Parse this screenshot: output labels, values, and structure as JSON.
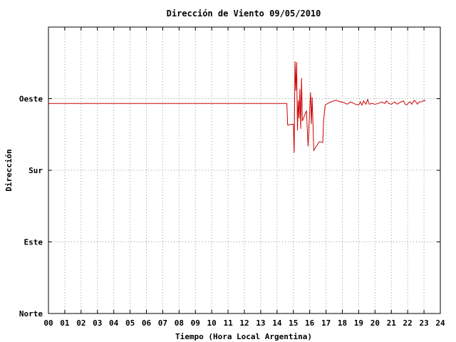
{
  "chart_data": {
    "type": "line",
    "title": "Dirección de Viento 09/05/2010",
    "xlabel": "Tiempo (Hora Local Argentina)",
    "ylabel": "Dirección",
    "xlim": [
      0,
      24
    ],
    "ylim": [
      0,
      360
    ],
    "x_tick_labels": [
      "00",
      "01",
      "02",
      "03",
      "04",
      "05",
      "06",
      "07",
      "08",
      "09",
      "10",
      "11",
      "12",
      "13",
      "14",
      "15",
      "16",
      "17",
      "18",
      "19",
      "20",
      "21",
      "22",
      "23",
      "24"
    ],
    "y_ticks": [
      {
        "value": 0,
        "label": "Norte"
      },
      {
        "value": 90,
        "label": "Este"
      },
      {
        "value": 180,
        "label": "Sur"
      },
      {
        "value": 270,
        "label": "Oeste"
      }
    ],
    "grid": true,
    "series": [
      {
        "color": "#cc0000",
        "points": [
          [
            0.0,
            264
          ],
          [
            14.6,
            264
          ],
          [
            14.65,
            237
          ],
          [
            15.0,
            238
          ],
          [
            15.05,
            202
          ],
          [
            15.1,
            317
          ],
          [
            15.15,
            280
          ],
          [
            15.2,
            316
          ],
          [
            15.25,
            230
          ],
          [
            15.3,
            268
          ],
          [
            15.35,
            245
          ],
          [
            15.4,
            282
          ],
          [
            15.45,
            232
          ],
          [
            15.5,
            296
          ],
          [
            15.55,
            242
          ],
          [
            15.8,
            255
          ],
          [
            15.9,
            210
          ],
          [
            16.0,
            257
          ],
          [
            16.05,
            278
          ],
          [
            16.1,
            238
          ],
          [
            16.15,
            272
          ],
          [
            16.25,
            205
          ],
          [
            16.4,
            210
          ],
          [
            16.6,
            216
          ],
          [
            16.8,
            215
          ],
          [
            16.85,
            242
          ],
          [
            16.95,
            262
          ],
          [
            17.1,
            264
          ],
          [
            17.3,
            266
          ],
          [
            17.6,
            268
          ],
          [
            17.9,
            266
          ],
          [
            18.1,
            265
          ],
          [
            18.3,
            263
          ],
          [
            18.5,
            266
          ],
          [
            18.8,
            263
          ],
          [
            19.0,
            262
          ],
          [
            19.1,
            266
          ],
          [
            19.2,
            262
          ],
          [
            19.3,
            267
          ],
          [
            19.45,
            263
          ],
          [
            19.55,
            269
          ],
          [
            19.65,
            263
          ],
          [
            19.8,
            264
          ],
          [
            20.0,
            263
          ],
          [
            20.2,
            264
          ],
          [
            20.4,
            266
          ],
          [
            20.6,
            264
          ],
          [
            20.7,
            267
          ],
          [
            20.85,
            264
          ],
          [
            21.0,
            263
          ],
          [
            21.2,
            266
          ],
          [
            21.35,
            263
          ],
          [
            21.5,
            265
          ],
          [
            21.6,
            266
          ],
          [
            21.75,
            267
          ],
          [
            21.85,
            263
          ],
          [
            21.95,
            262
          ],
          [
            22.05,
            265
          ],
          [
            22.15,
            266
          ],
          [
            22.25,
            263
          ],
          [
            22.4,
            268
          ],
          [
            22.5,
            266
          ],
          [
            22.6,
            263
          ],
          [
            22.7,
            266
          ],
          [
            22.85,
            266
          ],
          [
            23.0,
            268
          ],
          [
            23.1,
            267
          ]
        ]
      }
    ]
  }
}
